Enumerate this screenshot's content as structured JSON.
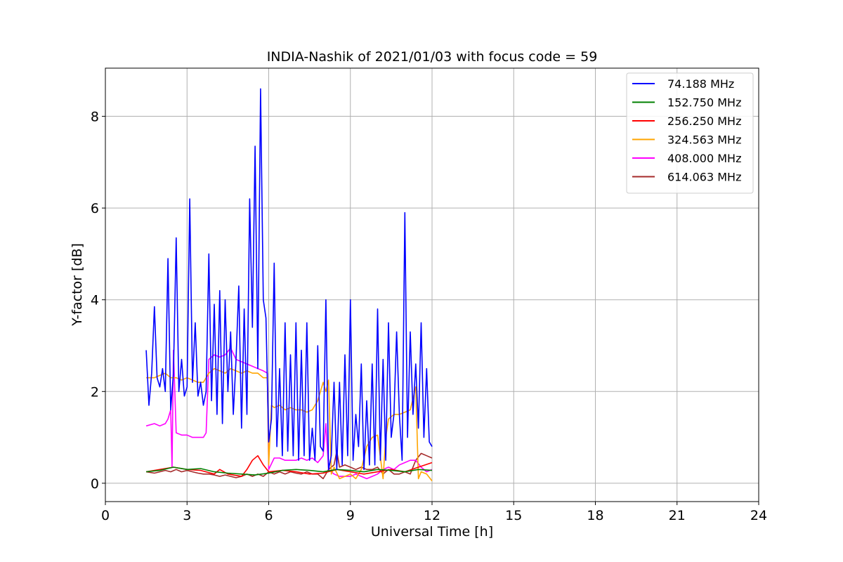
{
  "chart_data": {
    "type": "line",
    "title": "INDIA-Nashik of 2021/01/03 with focus code = 59",
    "xlabel": "Universal Time [h]",
    "ylabel": "Y-factor [dB]",
    "xlim": [
      0,
      24
    ],
    "ylim": [
      -0.4,
      9.05
    ],
    "xticks": [
      0,
      3,
      6,
      9,
      12,
      15,
      18,
      21,
      24
    ],
    "yticks": [
      0,
      2,
      4,
      6,
      8
    ],
    "grid": true,
    "legend_position": "top-right",
    "series": [
      {
        "name": " 74.188 MHz",
        "color": "#0000ff",
        "x": [
          1.5,
          1.6,
          1.7,
          1.8,
          1.9,
          2.0,
          2.1,
          2.2,
          2.3,
          2.4,
          2.5,
          2.6,
          2.7,
          2.8,
          2.9,
          3.0,
          3.1,
          3.2,
          3.3,
          3.4,
          3.5,
          3.6,
          3.7,
          3.8,
          3.9,
          4.0,
          4.1,
          4.2,
          4.3,
          4.4,
          4.5,
          4.6,
          4.7,
          4.8,
          4.9,
          5.0,
          5.1,
          5.2,
          5.3,
          5.4,
          5.5,
          5.6,
          5.7,
          5.8,
          5.9,
          6.0,
          6.1,
          6.2,
          6.3,
          6.4,
          6.5,
          6.6,
          6.7,
          6.8,
          6.9,
          7.0,
          7.1,
          7.2,
          7.3,
          7.4,
          7.5,
          7.6,
          7.7,
          7.8,
          7.9,
          8.0,
          8.1,
          8.2,
          8.3,
          8.4,
          8.5,
          8.6,
          8.7,
          8.8,
          8.9,
          9.0,
          9.1,
          9.2,
          9.3,
          9.4,
          9.5,
          9.6,
          9.7,
          9.8,
          9.9,
          10.0,
          10.1,
          10.2,
          10.3,
          10.4,
          10.5,
          10.6,
          10.7,
          10.8,
          10.9,
          11.0,
          11.1,
          11.2,
          11.3,
          11.4,
          11.5,
          11.6,
          11.7,
          11.8,
          11.9,
          12.0
        ],
        "y": [
          2.9,
          1.7,
          2.4,
          3.85,
          2.3,
          2.1,
          2.5,
          2.0,
          4.9,
          1.6,
          2.4,
          5.35,
          2.0,
          2.7,
          1.9,
          2.1,
          6.2,
          2.2,
          3.5,
          1.9,
          2.2,
          1.7,
          2.0,
          5.0,
          1.8,
          3.9,
          1.5,
          4.2,
          1.3,
          4.0,
          2.0,
          3.3,
          1.5,
          2.7,
          4.3,
          1.2,
          3.8,
          1.5,
          6.2,
          3.4,
          7.35,
          2.5,
          8.6,
          4.0,
          3.6,
          0.9,
          1.4,
          4.8,
          0.8,
          2.5,
          0.6,
          3.5,
          0.7,
          2.8,
          0.6,
          3.5,
          0.5,
          2.9,
          0.6,
          3.5,
          0.5,
          1.2,
          0.5,
          3.0,
          0.8,
          0.7,
          4.0,
          0.3,
          0.6,
          2.2,
          0.3,
          2.2,
          0.4,
          2.8,
          0.6,
          4.0,
          0.5,
          1.5,
          0.8,
          2.6,
          0.3,
          1.8,
          0.4,
          2.6,
          0.4,
          3.8,
          0.5,
          2.7,
          0.5,
          3.5,
          1.0,
          1.5,
          3.3,
          1.5,
          0.5,
          5.9,
          1.0,
          3.3,
          1.5,
          2.6,
          1.2,
          3.5,
          1.0,
          2.5,
          0.9,
          0.8
        ]
      },
      {
        "name": "152.750 MHz",
        "color": "#008000",
        "x": [
          1.5,
          2.0,
          2.5,
          3.0,
          3.5,
          4.0,
          4.5,
          5.0,
          5.5,
          6.0,
          6.5,
          7.0,
          7.5,
          8.0,
          8.5,
          9.0,
          9.5,
          10.0,
          10.5,
          11.0,
          11.5,
          12.0
        ],
        "y": [
          0.25,
          0.28,
          0.35,
          0.3,
          0.32,
          0.25,
          0.22,
          0.2,
          0.18,
          0.22,
          0.28,
          0.3,
          0.28,
          0.25,
          0.3,
          0.28,
          0.25,
          0.3,
          0.28,
          0.25,
          0.3,
          0.28
        ]
      },
      {
        "name": "256.250 MHz",
        "color": "#ff0000",
        "x": [
          1.5,
          2.0,
          2.5,
          3.0,
          3.5,
          4.0,
          4.2,
          4.5,
          5.0,
          5.2,
          5.4,
          5.6,
          5.8,
          6.0,
          6.5,
          7.0,
          7.5,
          8.0,
          8.5,
          9.0,
          9.5,
          10.0,
          10.5,
          11.0,
          11.5,
          12.0
        ],
        "y": [
          0.25,
          0.3,
          0.35,
          0.3,
          0.28,
          0.2,
          0.3,
          0.2,
          0.15,
          0.3,
          0.5,
          0.6,
          0.4,
          0.25,
          0.28,
          0.25,
          0.2,
          0.22,
          0.3,
          0.25,
          0.2,
          0.25,
          0.3,
          0.25,
          0.35,
          0.45
        ]
      },
      {
        "name": "324.563 MHz",
        "color": "#ffa500",
        "x": [
          1.5,
          1.8,
          2.0,
          2.2,
          2.4,
          2.6,
          2.8,
          3.0,
          3.2,
          3.4,
          3.6,
          3.7,
          3.8,
          4.0,
          4.2,
          4.4,
          4.6,
          4.8,
          5.0,
          5.2,
          5.4,
          5.6,
          5.8,
          5.95,
          6.0,
          6.1,
          6.2,
          6.4,
          6.6,
          6.8,
          7.0,
          7.2,
          7.4,
          7.6,
          7.8,
          8.0,
          8.1,
          8.2,
          8.3,
          8.4,
          8.6,
          8.8,
          9.0,
          9.2,
          9.4,
          9.6,
          9.8,
          10.0,
          10.2,
          10.3,
          10.4,
          10.6,
          10.8,
          11.0,
          11.2,
          11.4,
          11.5,
          11.6,
          11.8,
          12.0
        ],
        "y": [
          2.3,
          2.3,
          2.35,
          2.4,
          2.3,
          2.3,
          2.25,
          2.3,
          2.25,
          2.2,
          2.2,
          2.3,
          2.4,
          2.5,
          2.45,
          2.4,
          2.5,
          2.45,
          2.4,
          2.45,
          2.4,
          2.4,
          2.3,
          2.3,
          0.4,
          1.7,
          1.65,
          1.7,
          1.6,
          1.65,
          1.6,
          1.6,
          1.55,
          1.6,
          1.8,
          2.2,
          2.0,
          2.25,
          0.2,
          0.35,
          0.1,
          0.15,
          0.2,
          0.1,
          0.3,
          0.8,
          1.0,
          1.05,
          0.1,
          1.0,
          1.4,
          1.5,
          1.5,
          1.55,
          1.6,
          2.1,
          0.1,
          0.25,
          0.2,
          0.05
        ]
      },
      {
        "name": "408.000 MHz",
        "color": "#ff00ff",
        "x": [
          1.5,
          1.8,
          2.0,
          2.2,
          2.3,
          2.4,
          2.45,
          2.5,
          2.6,
          2.8,
          3.0,
          3.2,
          3.4,
          3.6,
          3.7,
          3.8,
          4.0,
          4.2,
          4.4,
          4.6,
          4.8,
          5.0,
          5.2,
          5.4,
          5.6,
          5.8,
          5.95,
          6.0,
          6.2,
          6.4,
          6.6,
          6.8,
          7.0,
          7.2,
          7.4,
          7.6,
          7.8,
          8.0,
          8.1,
          8.2,
          8.4,
          8.6,
          8.8,
          9.0,
          9.2,
          9.4,
          9.6,
          9.8,
          10.0,
          10.2,
          10.4,
          10.6,
          10.8,
          11.0,
          11.2,
          11.4,
          11.6,
          11.8,
          12.0
        ],
        "y": [
          1.25,
          1.3,
          1.25,
          1.3,
          1.4,
          1.6,
          0.35,
          2.9,
          1.1,
          1.05,
          1.05,
          1.0,
          1.0,
          1.0,
          1.1,
          2.7,
          2.8,
          2.75,
          2.8,
          2.95,
          2.7,
          2.65,
          2.6,
          2.55,
          2.5,
          2.45,
          2.4,
          0.3,
          0.55,
          0.55,
          0.5,
          0.5,
          0.5,
          0.55,
          0.5,
          0.55,
          0.45,
          0.6,
          1.3,
          0.3,
          0.2,
          0.15,
          0.15,
          0.15,
          0.2,
          0.15,
          0.1,
          0.15,
          0.2,
          0.3,
          0.35,
          0.3,
          0.4,
          0.45,
          0.5,
          0.5,
          0.35,
          0.25,
          0.3
        ]
      },
      {
        "name": "614.063 MHz",
        "color": "#a52a2a",
        "x": [
          1.5,
          1.8,
          2.0,
          2.2,
          2.4,
          2.6,
          2.8,
          3.0,
          3.2,
          3.4,
          3.6,
          3.8,
          4.0,
          4.2,
          4.4,
          4.6,
          4.8,
          5.0,
          5.2,
          5.4,
          5.6,
          5.8,
          6.0,
          6.2,
          6.4,
          6.6,
          6.8,
          7.0,
          7.2,
          7.4,
          7.6,
          7.8,
          8.0,
          8.2,
          8.4,
          8.5,
          8.6,
          8.8,
          9.0,
          9.2,
          9.4,
          9.6,
          9.8,
          10.0,
          10.2,
          10.4,
          10.6,
          10.8,
          11.0,
          11.2,
          11.4,
          11.6,
          11.8,
          12.0
        ],
        "y": [
          0.25,
          0.22,
          0.25,
          0.28,
          0.25,
          0.3,
          0.25,
          0.28,
          0.25,
          0.22,
          0.2,
          0.2,
          0.18,
          0.15,
          0.18,
          0.15,
          0.12,
          0.15,
          0.2,
          0.15,
          0.2,
          0.15,
          0.25,
          0.2,
          0.25,
          0.2,
          0.25,
          0.22,
          0.2,
          0.25,
          0.2,
          0.2,
          0.1,
          0.3,
          0.4,
          0.7,
          0.35,
          0.4,
          0.35,
          0.3,
          0.35,
          0.3,
          0.3,
          0.35,
          0.2,
          0.3,
          0.2,
          0.2,
          0.25,
          0.2,
          0.5,
          0.65,
          0.6,
          0.55
        ]
      }
    ]
  }
}
